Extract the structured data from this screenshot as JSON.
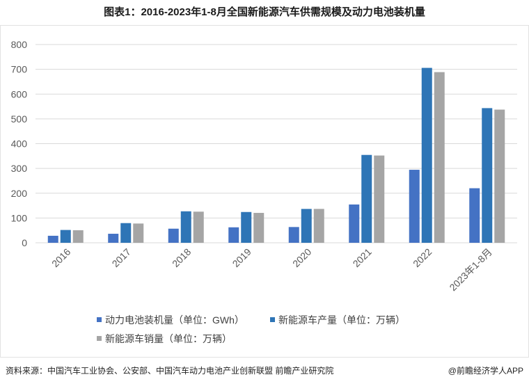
{
  "title": "图表1：2016-2023年1-8月全国新能源汽车供需规模及动力电池装机量",
  "footer": {
    "source": "资料来源：中国汽车工业协会、公安部、中国汽车动力电池产业创新联盟 前瞻产业研究院",
    "brand": "@前瞻经济学人APP"
  },
  "chart_data": {
    "type": "bar",
    "categories": [
      "2016",
      "2017",
      "2018",
      "2019",
      "2020",
      "2021",
      "2022",
      "2023年1-8月"
    ],
    "series": [
      {
        "name": "动力电池装机量（单位：GWh）",
        "color": "#4472c4",
        "values": [
          28.3,
          36.4,
          56.9,
          62.4,
          63.6,
          154.5,
          294.6,
          220.1
        ]
      },
      {
        "name": "新能源车产量（单位：万辆）",
        "color": "#2e75b6",
        "values": [
          51.7,
          79.4,
          127.0,
          124.2,
          136.6,
          354.5,
          705.8,
          543.4
        ]
      },
      {
        "name": "新能源车销量（单位：万辆）",
        "color": "#a5a5a5",
        "values": [
          50.7,
          77.7,
          125.6,
          120.6,
          136.7,
          352.1,
          688.7,
          537.4
        ]
      }
    ],
    "yticks": [
      0,
      100,
      200,
      300,
      400,
      500,
      600,
      700,
      800
    ],
    "ylim": [
      0,
      800
    ],
    "grid": true,
    "legend": "bottom"
  }
}
